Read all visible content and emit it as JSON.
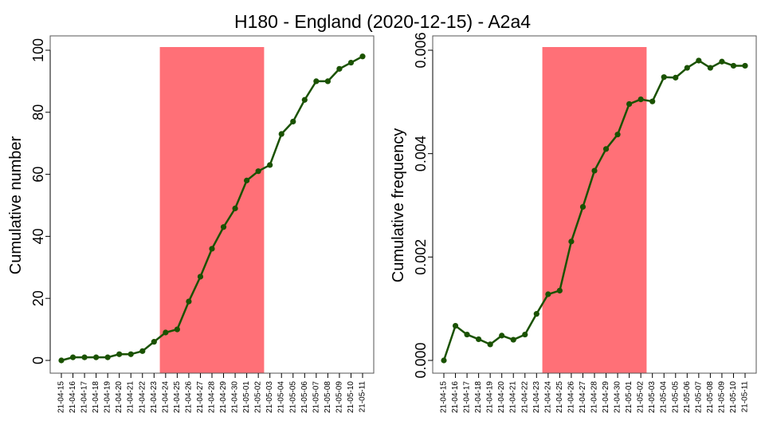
{
  "figure": {
    "title": "H180 - England (2020-12-15) - A2a4"
  },
  "colors": {
    "series": "#1a5200",
    "highlight": "#ff7077",
    "axis": "#000000",
    "frame": "#555555"
  },
  "chart_data": [
    {
      "type": "line",
      "ylabel": "Cumulative number",
      "ylim": [
        0,
        100
      ],
      "yticks": [
        "0",
        "20",
        "40",
        "60",
        "80",
        "100"
      ],
      "ytick_values": [
        0,
        20,
        40,
        60,
        80,
        100
      ],
      "grid": false,
      "x": [
        "21-04-15",
        "21-04-16",
        "21-04-17",
        "21-04-18",
        "21-04-19",
        "21-04-20",
        "21-04-21",
        "21-04-22",
        "21-04-23",
        "21-04-24",
        "21-04-25",
        "21-04-26",
        "21-04-27",
        "21-04-28",
        "21-04-29",
        "21-04-30",
        "21-05-01",
        "21-05-02",
        "21-05-03",
        "21-05-04",
        "21-05-05",
        "21-05-06",
        "21-05-07",
        "21-05-08",
        "21-05-09",
        "21-05-10",
        "21-05-11"
      ],
      "highlight": {
        "from": "21-04-24",
        "to": "21-05-02"
      },
      "series": [
        {
          "values": [
            0,
            1,
            1,
            1,
            1,
            2,
            2,
            3,
            6,
            9,
            10,
            19,
            27,
            36,
            43,
            49,
            58,
            61,
            63,
            73,
            77,
            84,
            90,
            90,
            94,
            96,
            98
          ]
        }
      ]
    },
    {
      "type": "line",
      "ylabel": "Cumulative frequency",
      "ylim": [
        0,
        0.006
      ],
      "yticks": [
        "0.000",
        "0.002",
        "0.004",
        "0.006"
      ],
      "ytick_values": [
        0,
        0.002,
        0.004,
        0.006
      ],
      "grid": false,
      "x": [
        "21-04-15",
        "21-04-16",
        "21-04-17",
        "21-04-18",
        "21-04-19",
        "21-04-20",
        "21-04-21",
        "21-04-22",
        "21-04-23",
        "21-04-24",
        "21-04-25",
        "21-04-26",
        "21-04-27",
        "21-04-28",
        "21-04-29",
        "21-04-30",
        "21-05-01",
        "21-05-02",
        "21-05-03",
        "21-05-04",
        "21-05-05",
        "21-05-06",
        "21-05-07",
        "21-05-08",
        "21-05-09",
        "21-05-10",
        "21-05-11"
      ],
      "highlight": {
        "from": "21-04-24",
        "to": "21-05-02"
      },
      "series": [
        {
          "values": [
            0.0,
            0.00067,
            0.0005,
            0.00041,
            0.00031,
            0.00048,
            0.0004,
            0.0005,
            0.0009,
            0.00128,
            0.00135,
            0.0023,
            0.00297,
            0.00367,
            0.00409,
            0.00437,
            0.00496,
            0.00505,
            0.00501,
            0.00548,
            0.00547,
            0.00566,
            0.0058,
            0.00566,
            0.00578,
            0.0057,
            0.0057
          ]
        }
      ]
    }
  ]
}
